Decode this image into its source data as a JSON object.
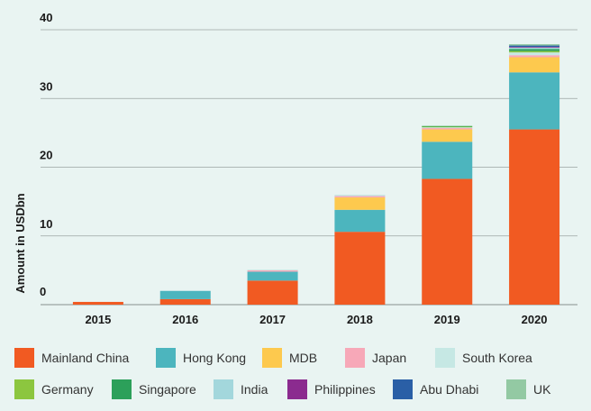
{
  "chart_data": {
    "type": "bar",
    "stacked": true,
    "title": "",
    "xlabel": "",
    "ylabel": "Amount in USDbn",
    "ylim": [
      0,
      40
    ],
    "yticks": [
      0,
      10,
      20,
      30,
      40
    ],
    "grid": true,
    "legend_position": "bottom",
    "categories": [
      "2015",
      "2016",
      "2017",
      "2018",
      "2019",
      "2020"
    ],
    "series": [
      {
        "name": "Mainland China",
        "color": "#f15a22",
        "values": [
          0.4,
          0.8,
          3.5,
          10.6,
          18.3,
          25.5
        ]
      },
      {
        "name": "Hong Kong",
        "color": "#4cb5be",
        "values": [
          0.0,
          1.2,
          1.3,
          3.2,
          5.4,
          8.3
        ]
      },
      {
        "name": "MDB",
        "color": "#fdc94e",
        "values": [
          0.0,
          0.0,
          0.0,
          1.8,
          1.8,
          2.2
        ]
      },
      {
        "name": "Japan",
        "color": "#f7a8b8",
        "values": [
          0.0,
          0.0,
          0.2,
          0.2,
          0.2,
          0.3
        ]
      },
      {
        "name": "South Korea",
        "color": "#c6e8e4",
        "values": [
          0.0,
          0.0,
          0.1,
          0.2,
          0.1,
          0.4
        ]
      },
      {
        "name": "Germany",
        "color": "#8cc63f",
        "values": [
          0.0,
          0.0,
          0.0,
          0.0,
          0.1,
          0.2
        ]
      },
      {
        "name": "Singapore",
        "color": "#2ca05a",
        "values": [
          0.0,
          0.0,
          0.0,
          0.0,
          0.1,
          0.3
        ]
      },
      {
        "name": "India",
        "color": "#a3d7dc",
        "values": [
          0.0,
          0.0,
          0.0,
          0.0,
          0.0,
          0.2
        ]
      },
      {
        "name": "Philippines",
        "color": "#8b2b8f",
        "values": [
          0.0,
          0.0,
          0.0,
          0.0,
          0.0,
          0.1
        ]
      },
      {
        "name": "Abu Dhabi",
        "color": "#2a5fa6",
        "values": [
          0.0,
          0.0,
          0.0,
          0.0,
          0.0,
          0.2
        ]
      },
      {
        "name": "UK",
        "color": "#93c9a3",
        "values": [
          0.0,
          0.0,
          0.0,
          0.0,
          0.0,
          0.2
        ]
      }
    ],
    "colors": {
      "background": "#e9f4f2",
      "gridline": "#9aa3a2",
      "text": "#1a1a1a"
    }
  }
}
